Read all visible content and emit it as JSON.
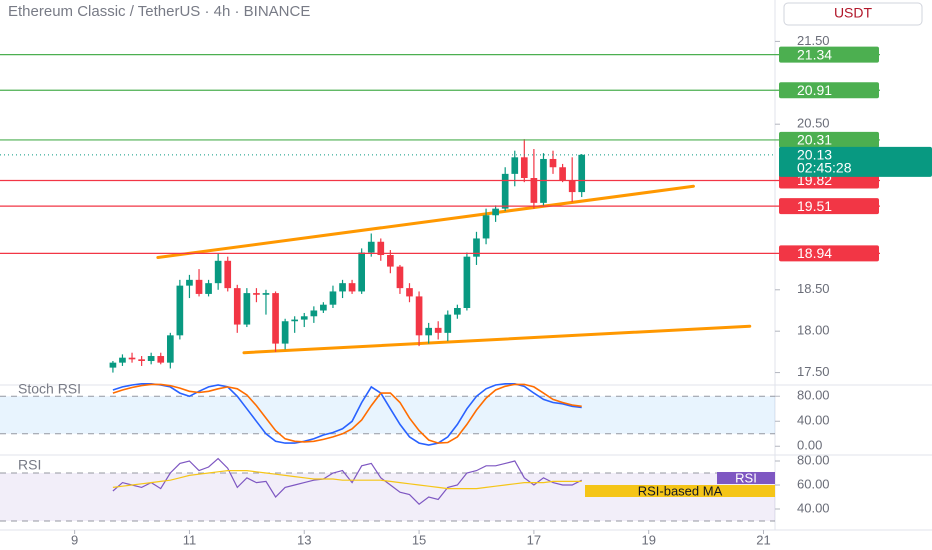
{
  "chart_data": [
    {
      "type": "candlestick",
      "title": "Ethereum Classic / TetherUS · 4h · BINANCE",
      "y_label": "USDT",
      "xlim": [
        7.7,
        21.2
      ],
      "ylim": [
        17.35,
        22.0
      ],
      "yticks": [
        {
          "value": 17.5,
          "label": "17.50"
        },
        {
          "value": 18,
          "label": "18.00"
        },
        {
          "value": 18.5,
          "label": "18.50"
        },
        {
          "value": 20.5,
          "label": "20.50"
        },
        {
          "value": 21.5,
          "label": "21.50"
        }
      ],
      "x": [
        9.667,
        9.833,
        10,
        10.167,
        10.333,
        10.5,
        10.667,
        10.833,
        11,
        11.167,
        11.333,
        11.5,
        11.667,
        11.833,
        12,
        12.167,
        12.333,
        12.5,
        12.667,
        12.833,
        13,
        13.167,
        13.333,
        13.5,
        13.667,
        13.833,
        14,
        14.167,
        14.333,
        14.5,
        14.667,
        14.833,
        15,
        15.167,
        15.333,
        15.5,
        15.667,
        15.833,
        16,
        16.167,
        16.333,
        16.5,
        16.667,
        16.833,
        17,
        17.167,
        17.333,
        17.5,
        17.667,
        17.833
      ],
      "open": [
        17.56,
        17.62,
        17.68,
        17.66,
        17.64,
        17.7,
        17.62,
        17.95,
        18.55,
        18.62,
        18.45,
        18.58,
        18.85,
        18.52,
        18.08,
        18.46,
        18.44,
        18.46,
        17.85,
        18.12,
        18.14,
        18.18,
        18.25,
        18.32,
        18.48,
        18.58,
        18.48,
        18.95,
        19.08,
        18.92,
        18.78,
        18.52,
        18.42,
        17.95,
        18.04,
        17.98,
        18.2,
        18.28,
        18.9,
        19.12,
        19.4,
        19.48,
        19.9,
        20.1,
        19.85,
        19.55,
        20.08,
        19.98,
        19.82,
        19.68
      ],
      "high": [
        17.64,
        17.72,
        17.74,
        17.7,
        17.74,
        17.74,
        17.98,
        18.62,
        18.68,
        18.75,
        18.62,
        18.94,
        18.9,
        18.56,
        18.52,
        18.52,
        18.5,
        18.48,
        18.15,
        18.18,
        18.22,
        18.3,
        18.35,
        18.55,
        18.62,
        18.62,
        19.0,
        19.18,
        19.12,
        18.98,
        18.8,
        18.58,
        18.48,
        18.1,
        18.12,
        18.25,
        18.32,
        18.95,
        19.2,
        19.48,
        19.52,
        19.98,
        20.18,
        20.32,
        20.2,
        20.15,
        20.18,
        20.02,
        20.1,
        20.14
      ],
      "low": [
        17.5,
        17.58,
        17.62,
        17.58,
        17.6,
        17.6,
        17.55,
        17.9,
        18.4,
        18.42,
        18.42,
        18.5,
        18.48,
        17.98,
        18.05,
        18.35,
        18.2,
        17.75,
        17.78,
        17.98,
        18.05,
        18.1,
        18.22,
        18.28,
        18.4,
        18.45,
        18.45,
        18.9,
        18.85,
        18.7,
        18.45,
        18.35,
        17.82,
        17.85,
        17.9,
        17.88,
        18.15,
        18.25,
        18.8,
        19.05,
        19.32,
        19.45,
        19.75,
        19.8,
        19.48,
        19.52,
        19.9,
        19.8,
        19.56,
        19.62
      ],
      "close": [
        17.62,
        17.68,
        17.66,
        17.64,
        17.7,
        17.62,
        17.95,
        18.55,
        18.62,
        18.45,
        18.58,
        18.85,
        18.52,
        18.08,
        18.46,
        18.44,
        18.46,
        17.85,
        18.12,
        18.14,
        18.18,
        18.25,
        18.32,
        18.48,
        18.58,
        18.48,
        18.95,
        19.08,
        18.92,
        18.78,
        18.52,
        18.42,
        17.95,
        18.04,
        17.98,
        18.2,
        18.28,
        18.9,
        19.12,
        19.4,
        19.48,
        19.9,
        20.1,
        19.85,
        19.55,
        20.08,
        19.98,
        19.82,
        19.68,
        20.13
      ],
      "up_color": "#089981",
      "down_color": "#f23645",
      "levels": [
        {
          "value": 21.34,
          "color": "#4caf50"
        },
        {
          "value": 20.91,
          "color": "#4caf50"
        },
        {
          "value": 20.31,
          "color": "#4caf50"
        },
        {
          "value": 19.82,
          "color": "#f23645"
        },
        {
          "value": 19.51,
          "color": "#f23645"
        },
        {
          "value": 18.94,
          "color": "#f23645"
        }
      ],
      "last_price": {
        "value": 20.13,
        "countdown": "02:45:28",
        "color": "#089981"
      },
      "trendlines": [
        {
          "x": [
            10.45,
            19.78
          ],
          "y": [
            18.89,
            19.75
          ]
        },
        {
          "x": [
            11.95,
            20.76
          ],
          "y": [
            17.74,
            18.06
          ]
        }
      ],
      "trendline_color": "#ff9800"
    },
    {
      "type": "line",
      "title": "Stoch RSI",
      "xlim": [
        7.7,
        21.2
      ],
      "ylim": [
        -14,
        98
      ],
      "yticks": [
        {
          "value": 0,
          "label": "0.00"
        },
        {
          "value": 40,
          "label": "40.00"
        },
        {
          "value": 80,
          "label": "80.00"
        }
      ],
      "band": [
        20,
        80
      ],
      "x": [
        9.667,
        9.833,
        10,
        10.167,
        10.333,
        10.5,
        10.667,
        10.833,
        11,
        11.167,
        11.333,
        11.5,
        11.667,
        11.833,
        12,
        12.167,
        12.333,
        12.5,
        12.667,
        12.833,
        13,
        13.167,
        13.333,
        13.5,
        13.667,
        13.833,
        14,
        14.167,
        14.333,
        14.5,
        14.667,
        14.833,
        15,
        15.167,
        15.333,
        15.5,
        15.667,
        15.833,
        16,
        16.167,
        16.333,
        16.5,
        16.667,
        16.833,
        17,
        17.167,
        17.333,
        17.5,
        17.667,
        17.833
      ],
      "series": [
        {
          "color": "#2962ff",
          "values": [
            90,
            95,
            98,
            100,
            100,
            98,
            95,
            85,
            80,
            88,
            95,
            98,
            95,
            80,
            60,
            40,
            20,
            8,
            5,
            5,
            8,
            12,
            18,
            22,
            28,
            40,
            70,
            95,
            85,
            60,
            35,
            15,
            5,
            2,
            5,
            15,
            35,
            60,
            80,
            92,
            98,
            100,
            100,
            96,
            85,
            75,
            70,
            68,
            64,
            62
          ]
        },
        {
          "color": "#ff6d00",
          "values": [
            85,
            90,
            94,
            97,
            99,
            99,
            97,
            93,
            88,
            86,
            88,
            92,
            95,
            92,
            82,
            65,
            45,
            25,
            12,
            8,
            7,
            8,
            11,
            15,
            20,
            28,
            42,
            65,
            85,
            85,
            70,
            45,
            25,
            10,
            5,
            6,
            15,
            35,
            58,
            77,
            90,
            96,
            99,
            99,
            95,
            85,
            75,
            70,
            66,
            64
          ]
        }
      ]
    },
    {
      "type": "line",
      "title": "RSI",
      "xlim": [
        7.7,
        21.2
      ],
      "ylim": [
        22.5,
        85
      ],
      "yticks": [
        {
          "value": 40,
          "label": "40.00"
        },
        {
          "value": 60,
          "label": "60.00"
        },
        {
          "value": 80,
          "label": "80.00"
        }
      ],
      "xticks": [
        9,
        11,
        13,
        15,
        17,
        19,
        21
      ],
      "band": [
        30,
        70
      ],
      "x": [
        9.667,
        9.833,
        10,
        10.167,
        10.333,
        10.5,
        10.667,
        10.833,
        11,
        11.167,
        11.333,
        11.5,
        11.667,
        11.833,
        12,
        12.167,
        12.333,
        12.5,
        12.667,
        12.833,
        13,
        13.167,
        13.333,
        13.5,
        13.667,
        13.833,
        14,
        14.167,
        14.333,
        14.5,
        14.667,
        14.833,
        15,
        15.167,
        15.333,
        15.5,
        15.667,
        15.833,
        16,
        16.167,
        16.333,
        16.5,
        16.667,
        16.833,
        17,
        17.167,
        17.333,
        17.5,
        17.667,
        17.833
      ],
      "series": [
        {
          "name": "RSI",
          "color": "#7e57c2",
          "values": [
            55,
            62,
            60,
            58,
            62,
            57,
            70,
            78,
            80,
            72,
            75,
            82,
            74,
            58,
            66,
            62,
            63,
            50,
            58,
            60,
            62,
            64,
            65,
            70,
            72,
            62,
            76,
            78,
            66,
            60,
            54,
            52,
            44,
            50,
            48,
            58,
            60,
            70,
            72,
            76,
            76,
            78,
            80,
            66,
            60,
            66,
            62,
            60,
            60,
            64
          ]
        },
        {
          "name": "RSI-based MA",
          "color": "#f5c518",
          "values": [
            58,
            59,
            60,
            61,
            62,
            63,
            64,
            66,
            68,
            69,
            70,
            71,
            72,
            72,
            72,
            71,
            70,
            69,
            68,
            67,
            66,
            65,
            65,
            65,
            64,
            64,
            64,
            64,
            64,
            63,
            62,
            61,
            60,
            59,
            58,
            57,
            57,
            57,
            57,
            58,
            59,
            60,
            61,
            62,
            62,
            62,
            63,
            63,
            63,
            63
          ]
        }
      ]
    }
  ]
}
